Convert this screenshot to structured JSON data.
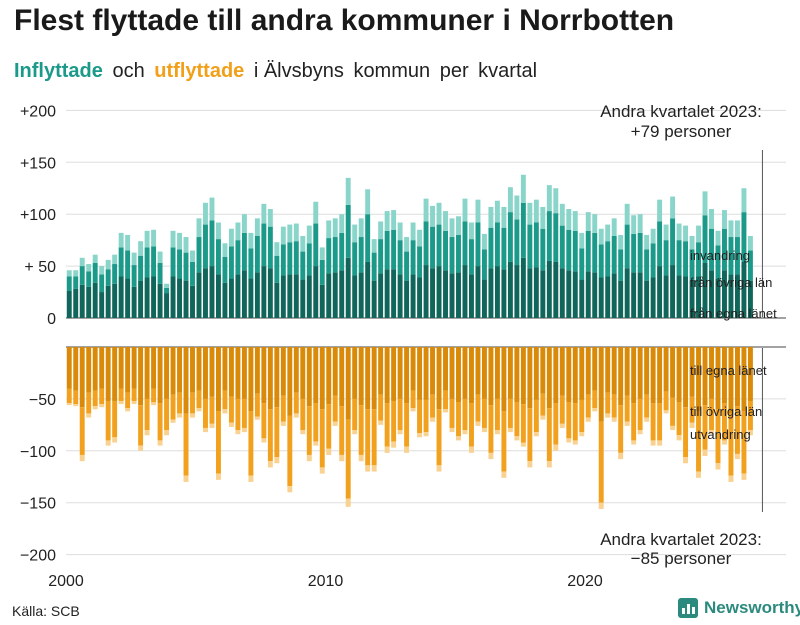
{
  "title": "Flest flyttade till andra kommuner i Norrbotten",
  "subtitle": {
    "part1": "Inflyttade",
    "part2": "och",
    "part3": "utflyttade",
    "part4": "i Älvsbyns",
    "part5": "kommun",
    "part6": "per",
    "part7": "kvartal"
  },
  "source": "Källa: SCB",
  "brand": "Newsworthy",
  "colors": {
    "in_dark": "#10665a",
    "in_mid": "#1c9a89",
    "in_light": "#8ad5ca",
    "out_dark": "#d88a08",
    "out_mid": "#f2a11e",
    "out_light": "#f9d190"
  },
  "chart_data": {
    "type": "bar",
    "stacked": true,
    "x_range": [
      2000,
      2024
    ],
    "x_ticks": [
      "2000",
      "2010",
      "2020"
    ],
    "y_range": [
      -200,
      200
    ],
    "y_ticks": [
      {
        "v": 200,
        "label": "+200"
      },
      {
        "v": 150,
        "label": "+150"
      },
      {
        "v": 100,
        "label": "+100"
      },
      {
        "v": 50,
        "label": "+ 50"
      },
      {
        "v": 0,
        "label": "0"
      },
      {
        "v": -50,
        "label": "−50"
      },
      {
        "v": -100,
        "label": "−100"
      },
      {
        "v": -150,
        "label": "−150"
      },
      {
        "v": -200,
        "label": "−200"
      }
    ],
    "grid": true,
    "start_year": 2000,
    "series_labels": {
      "in_egna": "från egna länet",
      "in_ovriga": "från övriga län",
      "in_invandring": "invandring",
      "out_egna": "till egna länet",
      "out_ovriga": "till övriga län",
      "out_utvandring": "utvandring"
    },
    "inflow_totals": [
      46,
      46,
      58,
      52,
      61,
      50,
      56,
      61,
      82,
      80,
      63,
      74,
      84,
      85,
      64,
      33,
      84,
      82,
      78,
      65,
      96,
      111,
      116,
      92,
      72,
      86,
      92,
      100,
      82,
      96,
      110,
      105,
      73,
      88,
      90,
      91,
      79,
      89,
      112,
      68,
      94,
      96,
      100,
      135,
      90,
      96,
      124,
      76,
      93,
      103,
      104,
      92,
      78,
      92,
      85,
      115,
      108,
      111,
      103,
      96,
      98,
      115,
      92,
      114,
      81,
      107,
      113,
      107,
      126,
      118,
      138,
      111,
      114,
      107,
      128,
      125,
      110,
      105,
      103,
      82,
      102,
      100,
      86,
      90,
      96,
      80,
      110,
      99,
      100,
      80,
      86,
      114,
      90,
      117,
      91,
      89,
      79,
      89,
      122,
      105,
      84,
      104,
      94,
      94,
      125,
      79
    ],
    "inflow_egna": [
      26,
      28,
      32,
      30,
      34,
      25,
      31,
      33,
      40,
      38,
      30,
      36,
      39,
      40,
      33,
      24,
      40,
      38,
      36,
      31,
      44,
      48,
      50,
      42,
      34,
      38,
      42,
      46,
      38,
      44,
      50,
      48,
      34,
      41,
      42,
      42,
      37,
      41,
      50,
      32,
      43,
      44,
      46,
      58,
      41,
      44,
      54,
      36,
      43,
      47,
      47,
      42,
      36,
      42,
      39,
      51,
      48,
      50,
      46,
      43,
      44,
      51,
      42,
      50,
      37,
      48,
      50,
      47,
      54,
      51,
      58,
      48,
      49,
      46,
      55,
      54,
      48,
      46,
      45,
      37,
      45,
      44,
      39,
      40,
      43,
      36,
      48,
      44,
      44,
      36,
      39,
      50,
      41,
      51,
      41,
      40,
      36,
      40,
      53,
      46,
      38,
      46,
      42,
      42,
      54,
      36
    ],
    "inflow_ovriga": [
      14,
      12,
      18,
      15,
      19,
      17,
      16,
      19,
      28,
      27,
      21,
      24,
      29,
      29,
      20,
      5,
      28,
      28,
      27,
      23,
      34,
      42,
      44,
      34,
      25,
      31,
      33,
      36,
      29,
      35,
      41,
      40,
      26,
      30,
      31,
      32,
      27,
      31,
      41,
      24,
      34,
      34,
      36,
      51,
      32,
      34,
      46,
      27,
      33,
      37,
      38,
      33,
      28,
      33,
      30,
      42,
      40,
      40,
      38,
      35,
      36,
      42,
      34,
      42,
      29,
      39,
      42,
      40,
      48,
      44,
      53,
      42,
      43,
      40,
      48,
      47,
      41,
      39,
      39,
      30,
      39,
      38,
      32,
      34,
      36,
      30,
      42,
      37,
      38,
      30,
      33,
      43,
      34,
      45,
      34,
      34,
      30,
      33,
      46,
      40,
      32,
      40,
      36,
      36,
      48,
      29
    ],
    "outflow_totals": [
      -56,
      -57,
      -110,
      -68,
      -60,
      -58,
      -95,
      -92,
      -55,
      -62,
      -55,
      -100,
      -85,
      -56,
      -95,
      -85,
      -73,
      -68,
      -130,
      -68,
      -62,
      -82,
      -78,
      -128,
      -64,
      -77,
      -84,
      -82,
      -130,
      -70,
      -92,
      -116,
      -112,
      -76,
      -140,
      -68,
      -84,
      -110,
      -95,
      -122,
      -104,
      -76,
      -110,
      -154,
      -84,
      -110,
      -120,
      -120,
      -75,
      -102,
      -97,
      -84,
      -102,
      -62,
      -87,
      -86,
      -72,
      -120,
      -63,
      -82,
      -90,
      -84,
      -102,
      -76,
      -82,
      -108,
      -84,
      -126,
      -82,
      -90,
      -96,
      -116,
      -86,
      -70,
      -116,
      -100,
      -78,
      -92,
      -94,
      -86,
      -72,
      -62,
      -156,
      -68,
      -72,
      -108,
      -76,
      -94,
      -84,
      -72,
      -95,
      -95,
      -64,
      -80,
      -90,
      -112,
      -78,
      -126,
      -105,
      -84,
      -118,
      -94,
      -130,
      -108,
      -128,
      -85
    ],
    "outflow_egna": [
      -40,
      -42,
      -58,
      -44,
      -42,
      -40,
      -52,
      -52,
      -40,
      -44,
      -40,
      -56,
      -50,
      -40,
      -54,
      -50,
      -46,
      -44,
      -64,
      -44,
      -42,
      -50,
      -48,
      -62,
      -42,
      -48,
      -50,
      -50,
      -62,
      -45,
      -54,
      -60,
      -58,
      -47,
      -66,
      -44,
      -50,
      -57,
      -54,
      -60,
      -55,
      -47,
      -57,
      -70,
      -50,
      -56,
      -60,
      -60,
      -46,
      -54,
      -52,
      -50,
      -54,
      -42,
      -51,
      -51,
      -46,
      -60,
      -42,
      -50,
      -53,
      -50,
      -54,
      -46,
      -50,
      -56,
      -50,
      -62,
      -50,
      -53,
      -55,
      -59,
      -51,
      -45,
      -59,
      -54,
      -47,
      -53,
      -54,
      -51,
      -46,
      -42,
      -72,
      -44,
      -46,
      -56,
      -47,
      -54,
      -50,
      -46,
      -54,
      -54,
      -43,
      -49,
      -53,
      -58,
      -48,
      -62,
      -56,
      -50,
      -60,
      -54,
      -64,
      -57,
      -62,
      -52
    ],
    "outflow_ovriga": [
      -14,
      -13,
      -46,
      -20,
      -15,
      -15,
      -38,
      -35,
      -12,
      -15,
      -12,
      -39,
      -30,
      -13,
      -36,
      -30,
      -24,
      -20,
      -60,
      -20,
      -17,
      -28,
      -26,
      -60,
      -18,
      -25,
      -30,
      -28,
      -62,
      -22,
      -34,
      -50,
      -48,
      -25,
      -68,
      -20,
      -30,
      -47,
      -37,
      -56,
      -43,
      -25,
      -47,
      -76,
      -30,
      -48,
      -54,
      -54,
      -25,
      -42,
      -39,
      -30,
      -42,
      -17,
      -32,
      -31,
      -22,
      -54,
      -18,
      -28,
      -33,
      -30,
      -42,
      -26,
      -28,
      -46,
      -30,
      -58,
      -28,
      -33,
      -37,
      -51,
      -31,
      -21,
      -51,
      -40,
      -27,
      -35,
      -36,
      -31,
      -22,
      -17,
      -78,
      -20,
      -22,
      -46,
      -25,
      -36,
      -30,
      -22,
      -36,
      -36,
      -18,
      -27,
      -32,
      -48,
      -25,
      -58,
      -43,
      -30,
      -52,
      -36,
      -60,
      -46,
      -60,
      -28
    ],
    "annotations": {
      "top": [
        "Andra kvartalet 2023:",
        "+79 personer"
      ],
      "bottom": [
        "Andra kvartalet 2023:",
        "−85 personer"
      ]
    }
  }
}
